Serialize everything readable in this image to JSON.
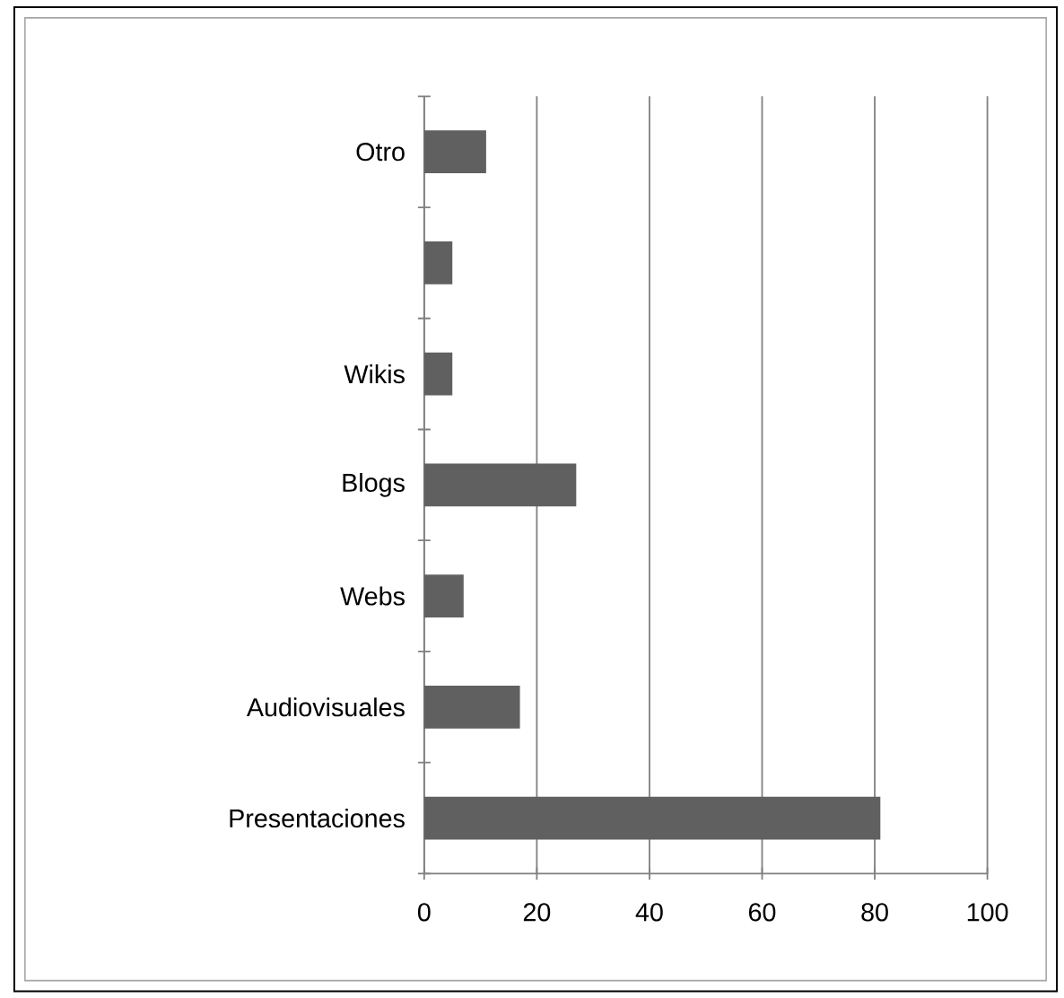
{
  "chart_data": {
    "type": "bar",
    "orientation": "horizontal",
    "categories": [
      "Otro",
      null,
      "Wikis",
      "Blogs",
      "Webs",
      "Audiovisuales",
      "Presentaciones"
    ],
    "values": [
      11,
      5,
      5,
      27,
      7,
      17,
      81
    ],
    "color": "#606060",
    "xlim": [
      0,
      100
    ],
    "xticks": [
      0,
      20,
      40,
      60,
      80,
      100
    ],
    "grid": "x"
  }
}
